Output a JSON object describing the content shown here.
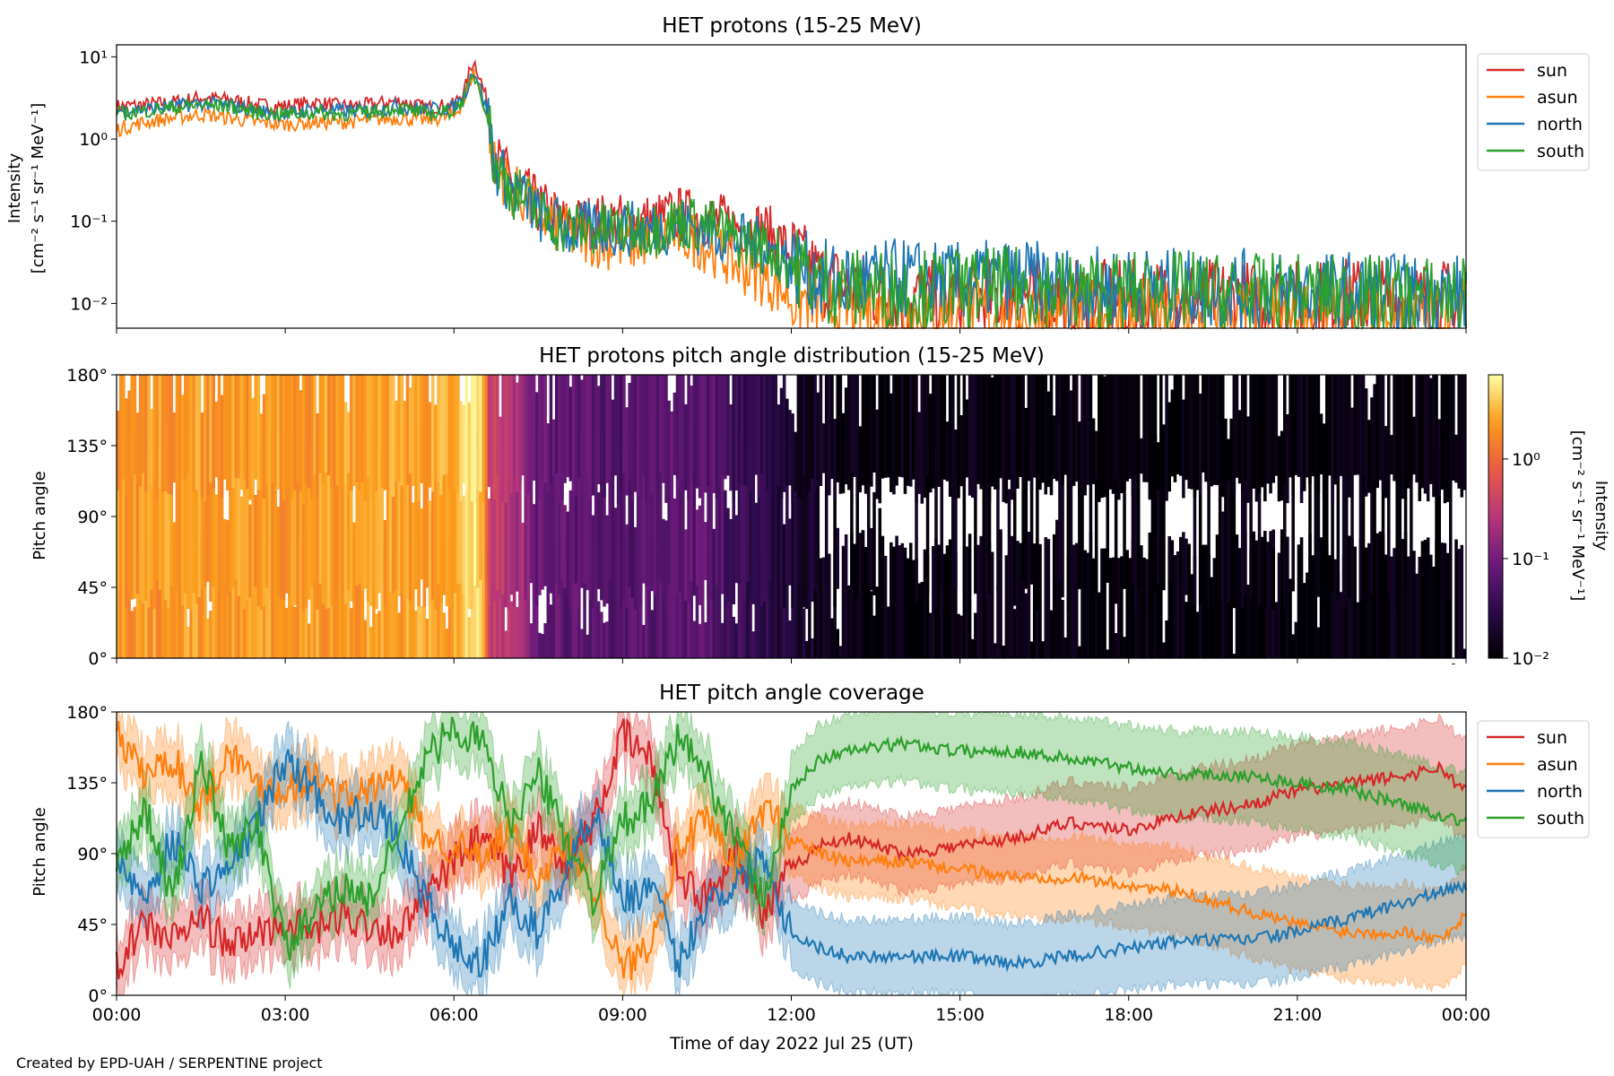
{
  "footer": {
    "credit": "Created by EPD-UAH / SERPENTINE project"
  },
  "chart_data": [
    {
      "type": "line",
      "title": "HET protons (15-25 MeV)",
      "ylabel_line1": "Intensity",
      "ylabel_line2": "[cm⁻² s⁻¹ sr⁻¹ MeV⁻¹]",
      "y_scale": "log",
      "ylim": [
        0.005,
        14
      ],
      "yticks": [
        {
          "value": 10,
          "label": "10¹"
        },
        {
          "value": 1,
          "label": "10⁰"
        },
        {
          "value": 0.1,
          "label": "10⁻¹"
        },
        {
          "value": 0.01,
          "label": "10⁻²"
        }
      ],
      "xlim_hours": [
        0,
        24
      ],
      "legend_position": "outside-right",
      "series": [
        {
          "name": "sun",
          "color": "#d62728",
          "x": [
            0,
            0.5,
            1,
            1.5,
            2,
            2.5,
            3,
            3.5,
            4,
            4.5,
            5,
            5.5,
            6,
            6.2,
            6.35,
            6.5,
            6.7,
            7,
            7.5,
            8,
            8.5,
            9,
            9.5,
            10,
            10.5,
            11,
            11.5,
            12,
            12.5,
            13,
            14,
            15,
            16,
            17,
            18,
            19,
            20,
            21,
            22,
            23,
            24
          ],
          "y": [
            2.5,
            2.6,
            2.8,
            3.2,
            3.0,
            2.6,
            2.5,
            2.8,
            2.5,
            2.6,
            2.9,
            2.4,
            2.6,
            4.0,
            9.0,
            4.5,
            0.6,
            0.3,
            0.15,
            0.09,
            0.1,
            0.1,
            0.1,
            0.12,
            0.11,
            0.09,
            0.08,
            0.04,
            0.02,
            0.015,
            0.012,
            0.011,
            0.012,
            0.011,
            0.011,
            0.012,
            0.011,
            0.011,
            0.012,
            0.011,
            0.011
          ]
        },
        {
          "name": "asun",
          "color": "#ff7f0e",
          "x": [
            0,
            0.5,
            1,
            1.5,
            2,
            2.5,
            3,
            3.5,
            4,
            4.5,
            5,
            5.5,
            6,
            6.2,
            6.35,
            6.5,
            6.7,
            7,
            7.5,
            8,
            8.5,
            9,
            9.5,
            10,
            10.5,
            11,
            11.5,
            12,
            12.5,
            13,
            14,
            15,
            16,
            17,
            18,
            19,
            20,
            21,
            22,
            23,
            24
          ],
          "y": [
            1.3,
            1.6,
            1.8,
            2.0,
            1.8,
            1.6,
            1.5,
            1.6,
            1.6,
            1.7,
            1.8,
            1.7,
            1.9,
            3.0,
            6.5,
            3.0,
            0.5,
            0.25,
            0.12,
            0.07,
            0.06,
            0.05,
            0.06,
            0.07,
            0.05,
            0.03,
            0.02,
            0.012,
            0.009,
            0.008,
            0.007,
            0.007,
            0.007,
            0.007,
            0.007,
            0.007,
            0.007,
            0.007,
            0.007,
            0.007,
            0.007
          ]
        },
        {
          "name": "north",
          "color": "#1f77b4",
          "x": [
            0,
            0.5,
            1,
            1.5,
            2,
            2.5,
            3,
            3.5,
            4,
            4.5,
            5,
            5.5,
            6,
            6.2,
            6.35,
            6.5,
            6.7,
            7,
            7.5,
            8,
            8.5,
            9,
            9.5,
            10,
            10.5,
            11,
            11.5,
            12,
            12.5,
            13,
            14,
            15,
            16,
            17,
            18,
            19,
            20,
            21,
            22,
            23,
            24
          ],
          "y": [
            2.2,
            2.3,
            2.5,
            2.7,
            2.6,
            2.2,
            2.0,
            2.3,
            2.2,
            2.2,
            2.5,
            2.3,
            2.4,
            3.5,
            7.0,
            3.5,
            0.5,
            0.25,
            0.12,
            0.08,
            0.08,
            0.08,
            0.08,
            0.09,
            0.08,
            0.06,
            0.05,
            0.03,
            0.02,
            0.018,
            0.02,
            0.018,
            0.02,
            0.016,
            0.016,
            0.015,
            0.015,
            0.014,
            0.014,
            0.013,
            0.013
          ]
        },
        {
          "name": "south",
          "color": "#2ca02c",
          "x": [
            0,
            0.5,
            1,
            1.5,
            2,
            2.5,
            3,
            3.5,
            4,
            4.5,
            5,
            5.5,
            6,
            6.2,
            6.35,
            6.5,
            6.7,
            7,
            7.5,
            8,
            8.5,
            9,
            9.5,
            10,
            10.5,
            11,
            11.5,
            12,
            12.5,
            13,
            14,
            15,
            16,
            17,
            18,
            19,
            20,
            21,
            22,
            23,
            24
          ],
          "y": [
            2.0,
            2.2,
            2.4,
            2.6,
            2.5,
            2.1,
            2.0,
            2.1,
            2.0,
            2.1,
            2.4,
            2.0,
            2.2,
            3.2,
            6.0,
            3.2,
            0.5,
            0.25,
            0.12,
            0.08,
            0.08,
            0.08,
            0.08,
            0.1,
            0.09,
            0.06,
            0.05,
            0.03,
            0.018,
            0.015,
            0.015,
            0.015,
            0.016,
            0.014,
            0.014,
            0.014,
            0.013,
            0.013,
            0.013,
            0.012,
            0.012
          ]
        }
      ]
    },
    {
      "type": "heatmap",
      "title": "HET protons pitch angle distribution (15-25 MeV)",
      "ylabel": "Pitch angle",
      "ylim_deg": [
        0,
        180
      ],
      "yticks": [
        "0°",
        "45°",
        "90°",
        "135°",
        "180°"
      ],
      "xlim_hours": [
        0,
        24
      ],
      "colorbar": {
        "label_line1": "Intensity",
        "label_line2": "[cm⁻² s⁻¹ sr⁻¹ MeV⁻¹]",
        "scale": "log",
        "range": [
          0.01,
          7
        ],
        "ticks": [
          {
            "value": 1,
            "label": "10⁰"
          },
          {
            "value": 0.1,
            "label": "10⁻¹"
          },
          {
            "value": 0.01,
            "label": "10⁻²"
          }
        ],
        "colormap": "inferno-like",
        "stops": [
          "#000004",
          "#2b0a4a",
          "#6a1a7a",
          "#b6377a",
          "#e85a46",
          "#fb9b1a",
          "#fcffa4"
        ]
      },
      "intensity_profile": {
        "x": [
          0,
          3,
          6,
          6.4,
          6.6,
          7.5,
          9,
          10.5,
          11,
          12,
          13,
          16,
          20,
          24
        ],
        "y": [
          2.2,
          2.2,
          2.6,
          6.0,
          0.4,
          0.08,
          0.06,
          0.07,
          0.04,
          0.02,
          0.012,
          0.011,
          0.011,
          0.011
        ]
      }
    },
    {
      "type": "line",
      "title": "HET pitch angle coverage",
      "xlabel": "Time of day 2022 Jul 25 (UT)",
      "ylabel": "Pitch angle",
      "ylim_deg": [
        0,
        180
      ],
      "yticks": [
        "0°",
        "45°",
        "90°",
        "135°",
        "180°"
      ],
      "xticks": [
        "00:00",
        "03:00",
        "06:00",
        "09:00",
        "12:00",
        "15:00",
        "18:00",
        "21:00",
        "00:00"
      ],
      "xlim_hours": [
        0,
        24
      ],
      "legend_position": "outside-right",
      "series": [
        {
          "name": "sun",
          "color": "#d62728",
          "x": [
            0,
            0.5,
            1,
            1.5,
            2,
            2.5,
            3,
            3.5,
            4,
            4.5,
            5,
            5.5,
            6,
            6.5,
            7,
            7.5,
            8,
            8.5,
            9,
            9.5,
            10,
            10.5,
            11,
            11.5,
            12,
            12.5,
            13,
            14,
            15,
            16,
            17,
            18,
            19,
            20,
            21,
            22,
            23,
            23.5,
            24
          ],
          "y": [
            20,
            45,
            35,
            50,
            30,
            40,
            45,
            40,
            50,
            45,
            40,
            60,
            85,
            100,
            75,
            105,
            85,
            110,
            165,
            150,
            75,
            60,
            95,
            50,
            80,
            95,
            100,
            90,
            95,
            100,
            110,
            105,
            115,
            120,
            130,
            135,
            140,
            145,
            130
          ]
        },
        {
          "name": "asun",
          "color": "#ff7f0e",
          "x": [
            0,
            0.5,
            1,
            1.5,
            2,
            2.5,
            3,
            3.5,
            4,
            4.5,
            5,
            5.5,
            6,
            6.5,
            7,
            7.5,
            8,
            8.5,
            9,
            9.5,
            10,
            10.5,
            11,
            11.5,
            12,
            12.5,
            13,
            14,
            15,
            16,
            17,
            18,
            19,
            20,
            21,
            22,
            23,
            23.5,
            24
          ],
          "y": [
            165,
            140,
            150,
            120,
            155,
            135,
            130,
            140,
            125,
            130,
            140,
            100,
            95,
            85,
            105,
            75,
            95,
            70,
            15,
            35,
            95,
            110,
            80,
            120,
            100,
            90,
            85,
            85,
            80,
            75,
            75,
            70,
            65,
            55,
            45,
            40,
            40,
            35,
            50
          ]
        },
        {
          "name": "north",
          "color": "#1f77b4",
          "x": [
            0,
            0.5,
            1,
            1.5,
            2,
            2.5,
            3,
            3.5,
            4,
            4.5,
            5,
            5.5,
            6,
            6.5,
            7,
            7.5,
            8,
            8.5,
            9,
            9.5,
            10,
            10.5,
            11,
            11.5,
            12,
            12.5,
            13,
            14,
            15,
            16,
            17,
            18,
            19,
            20,
            21,
            22,
            23,
            23.5,
            24
          ],
          "y": [
            90,
            60,
            100,
            70,
            80,
            110,
            150,
            130,
            110,
            120,
            100,
            60,
            30,
            20,
            60,
            40,
            80,
            120,
            60,
            70,
            20,
            60,
            70,
            90,
            40,
            30,
            25,
            25,
            25,
            20,
            25,
            30,
            35,
            35,
            40,
            50,
            60,
            65,
            70
          ]
        },
        {
          "name": "south",
          "color": "#2ca02c",
          "x": [
            0,
            0.5,
            1,
            1.5,
            2,
            2.5,
            3,
            3.5,
            4,
            4.5,
            5,
            5.5,
            6,
            6.5,
            7,
            7.5,
            8,
            8.5,
            9,
            9.5,
            10,
            10.5,
            11,
            11.5,
            12,
            12.5,
            13,
            14,
            15,
            16,
            17,
            18,
            19,
            20,
            21,
            22,
            23,
            23.5,
            24
          ],
          "y": [
            80,
            120,
            60,
            150,
            90,
            110,
            30,
            50,
            70,
            60,
            100,
            150,
            170,
            160,
            110,
            140,
            100,
            60,
            110,
            120,
            165,
            140,
            100,
            60,
            130,
            150,
            155,
            160,
            155,
            155,
            150,
            145,
            140,
            140,
            135,
            130,
            120,
            115,
            110
          ]
        }
      ]
    }
  ]
}
